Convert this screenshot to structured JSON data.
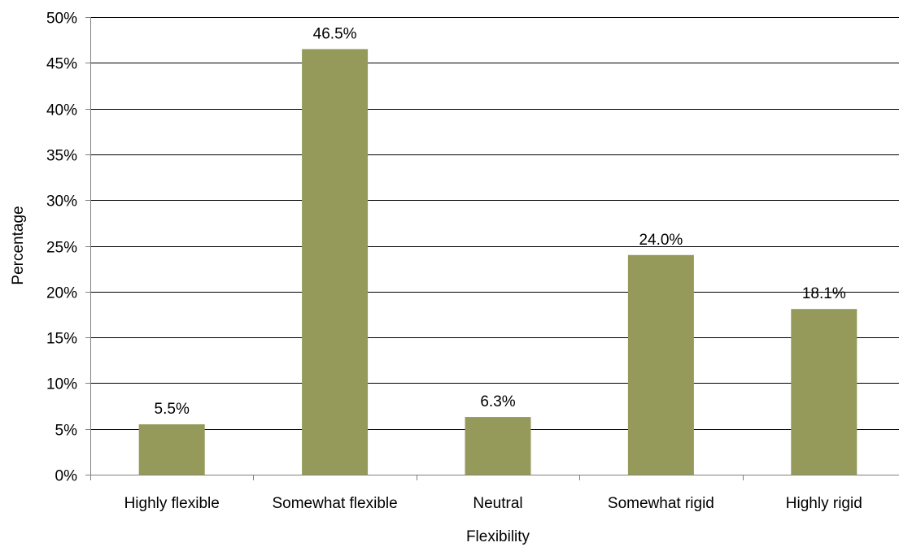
{
  "chart_data": {
    "type": "bar",
    "categories": [
      "Highly flexible",
      "Somewhat flexible",
      "Neutral",
      "Somewhat rigid",
      "Highly rigid"
    ],
    "values": [
      5.5,
      46.5,
      6.3,
      24.0,
      18.1
    ],
    "data_labels": [
      "5.5%",
      "46.5%",
      "6.3%",
      "24.0%",
      "18.1%"
    ],
    "xlabel": "Flexibility",
    "ylabel": "Percentage",
    "ylim": [
      0,
      50
    ],
    "yticks": [
      0,
      5,
      10,
      15,
      20,
      25,
      30,
      35,
      40,
      45,
      50
    ],
    "ytick_labels": [
      "0%",
      "5%",
      "10%",
      "15%",
      "20%",
      "25%",
      "30%",
      "35%",
      "40%",
      "45%",
      "50%"
    ],
    "grid": true,
    "legend": "none",
    "colors": {
      "bar": "#959a5a",
      "grid": "#000000",
      "axis": "#7f7f7f"
    }
  }
}
